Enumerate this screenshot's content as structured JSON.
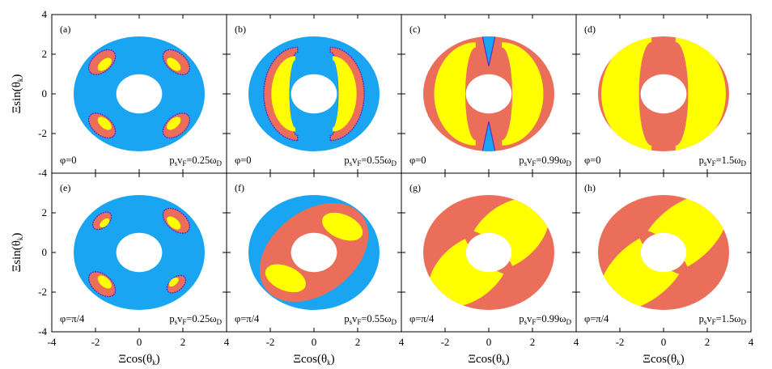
{
  "chart_data": {
    "type": "heatmap",
    "layout": "2 rows x 4 panels, shared axes",
    "grid": false,
    "xlabel": "Ξcos(θ_k)",
    "ylabel": "Ξsin(θ_k)",
    "xlim": [
      -4,
      4
    ],
    "ylim": [
      -4,
      4
    ],
    "xticks": [
      "-4",
      "-2",
      "0",
      "2",
      "4"
    ],
    "yticks": [
      "4",
      "2",
      "0",
      "-2",
      "-4"
    ],
    "domain": {
      "shape": "annulus",
      "inner_radius_x": 1.0,
      "inner_radius_y": 0.9,
      "outer_radius_x": 3.0,
      "outer_radius_y": 2.9
    },
    "region_colors": {
      "low": "#1aa5f2",
      "mid": "#ea6e59",
      "high": "#ffff00",
      "boundary": "#5a2cc8"
    },
    "panels": [
      {
        "label": "(a)",
        "phi": "φ=0",
        "ps_vF": "p_sv_F=0.25ω_D"
      },
      {
        "label": "(b)",
        "phi": "φ=0",
        "ps_vF": "p_sv_F=0.55ω_D"
      },
      {
        "label": "(c)",
        "phi": "φ=0",
        "ps_vF": "p_sv_F=0.99ω_D"
      },
      {
        "label": "(d)",
        "phi": "φ=0",
        "ps_vF": "p_sv_F=1.5ω_D"
      },
      {
        "label": "(e)",
        "phi": "φ=π/4",
        "ps_vF": "p_sv_F=0.25ω_D"
      },
      {
        "label": "(f)",
        "phi": "φ=π/4",
        "ps_vF": "p_sv_F=0.55ω_D"
      },
      {
        "label": "(g)",
        "phi": "φ=π/4",
        "ps_vF": "p_sv_F=0.99ω_D"
      },
      {
        "label": "(h)",
        "phi": "φ=π/4",
        "ps_vF": "p_sv_F=1.5ω_D"
      }
    ]
  }
}
